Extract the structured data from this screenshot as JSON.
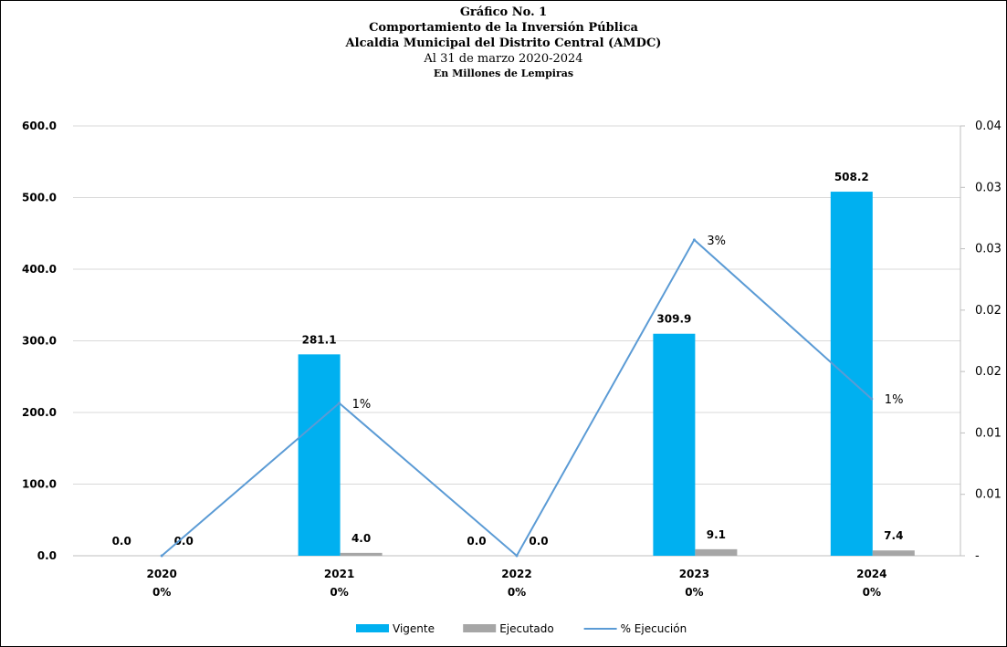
{
  "chart_data": {
    "type": "bar",
    "title": "Gráfico No. 1",
    "subtitle": [
      "Comportamiento de la Inversión Pública",
      "Alcaldia Municipal del Distrito Central (AMDC)",
      "Al 31 de marzo 2020-2024",
      "En Millones de Lempiras"
    ],
    "categories": [
      "2020",
      "2021",
      "2022",
      "2023",
      "2024"
    ],
    "category_sublabels": [
      "0%",
      "0%",
      "0%",
      "0%",
      "0%"
    ],
    "series": [
      {
        "name": "Vigente",
        "kind": "bar",
        "axis": "left",
        "color": "#00b0f0",
        "values": [
          0.0,
          281.1,
          0.0,
          309.9,
          508.2
        ],
        "labels": [
          "0.0",
          "281.1",
          "0.0",
          "309.9",
          "508.2"
        ]
      },
      {
        "name": "Ejecutado",
        "kind": "bar",
        "axis": "left",
        "color": "#a6a6a6",
        "values": [
          0.0,
          4.0,
          0.0,
          9.1,
          7.4
        ],
        "labels": [
          "0.0",
          "4.0",
          "0.0",
          "9.1",
          "7.4"
        ]
      },
      {
        "name": "% Ejecución",
        "kind": "line",
        "axis": "right",
        "color": "#5b9bd5",
        "values": [
          0.0,
          0.0142,
          0.0,
          0.0294,
          0.0146
        ],
        "labels": [
          "",
          "1%",
          "",
          "3%",
          "1%"
        ]
      }
    ],
    "ylim": [
      0,
      600
    ],
    "yticks": [
      "0.0",
      "100.0",
      "200.0",
      "300.0",
      "400.0",
      "500.0",
      "600.0"
    ],
    "y2lim": [
      0,
      0.04
    ],
    "y2ticks": [
      "-",
      "0.01",
      "0.01",
      "0.02",
      "0.02",
      "0.03",
      "0.03",
      "0.04"
    ],
    "grid": true,
    "legend": "bottom"
  }
}
